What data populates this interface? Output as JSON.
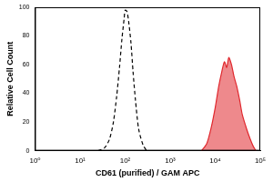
{
  "chart_data": {
    "type": "line",
    "x_label": "CD61 (purified) / GAM APC",
    "y_label": "Relative Cell Count",
    "log": "x",
    "grid": false,
    "xlim": [
      1,
      100000
    ],
    "xticks": [
      {
        "value": 1,
        "label": "10⁰"
      },
      {
        "value": 10,
        "label": "10¹"
      },
      {
        "value": 100,
        "label": "10²"
      },
      {
        "value": 1000,
        "label": "10³"
      },
      {
        "value": 10000,
        "label": "10⁴"
      },
      {
        "value": 100000,
        "label": "10⁵"
      }
    ],
    "ylim": [
      0,
      100
    ],
    "yticks": [
      0,
      20,
      40,
      60,
      80,
      100
    ],
    "series": [
      {
        "type": "line",
        "color": "#000000",
        "line_style": "dashed",
        "x": [
          25,
          35,
          45,
          55,
          65,
          75,
          85,
          95,
          100,
          110,
          120,
          135,
          150,
          170,
          200,
          250,
          300
        ],
        "values": [
          0,
          2,
          8,
          20,
          38,
          58,
          78,
          92,
          98,
          97,
          90,
          75,
          55,
          35,
          15,
          4,
          0
        ]
      },
      {
        "type": "area",
        "color": "#e0282e",
        "line_style": "solid",
        "x": [
          5000,
          6500,
          8000,
          10000,
          12000,
          14000,
          16000,
          18000,
          20000,
          23000,
          26000,
          30000,
          35000,
          40000,
          50000,
          60000,
          70000,
          80000
        ],
        "values": [
          0,
          5,
          15,
          30,
          45,
          55,
          62,
          58,
          65,
          60,
          52,
          45,
          35,
          25,
          15,
          8,
          3,
          0
        ]
      }
    ]
  }
}
